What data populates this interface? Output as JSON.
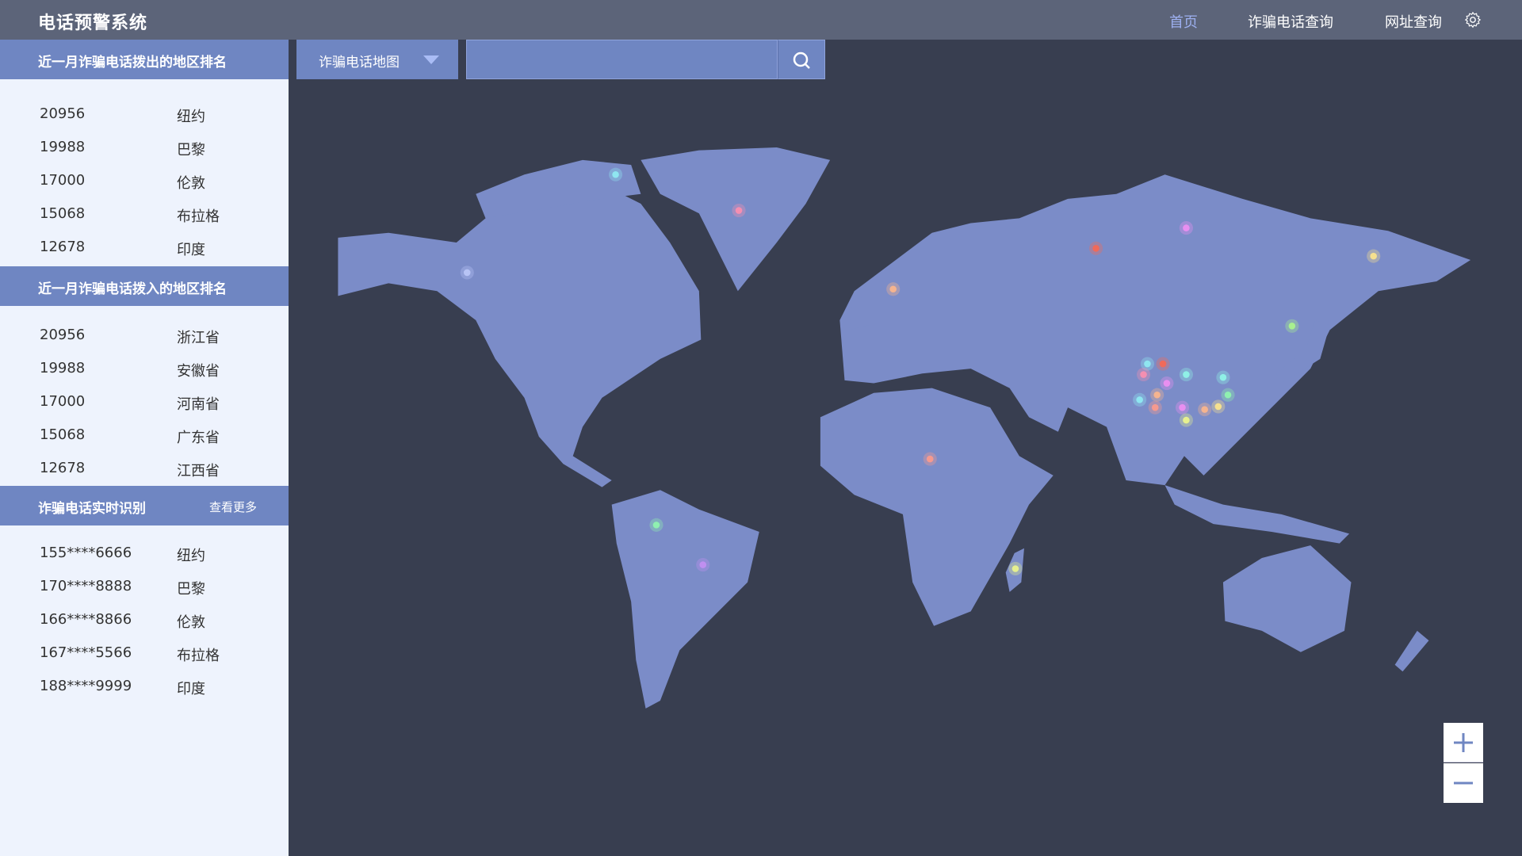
{
  "header": {
    "title": "电话预警系统",
    "nav": [
      {
        "label": "首页",
        "active": true
      },
      {
        "label": "诈骗电话查询"
      },
      {
        "label": "网址查询"
      }
    ],
    "settings_icon": "gear-icon"
  },
  "sidebar": {
    "outgoing": {
      "title": "近一月诈骗电话拨出的地区排名",
      "rows": [
        {
          "count": "20956",
          "region": "纽约"
        },
        {
          "count": "19988",
          "region": "巴黎"
        },
        {
          "count": "17000",
          "region": "伦敦"
        },
        {
          "count": "15068",
          "region": "布拉格"
        },
        {
          "count": "12678",
          "region": "印度"
        }
      ]
    },
    "incoming": {
      "title": "近一月诈骗电话拨入的地区排名",
      "rows": [
        {
          "count": "20956",
          "region": "浙江省"
        },
        {
          "count": "19988",
          "region": "安徽省"
        },
        {
          "count": "17000",
          "region": "河南省"
        },
        {
          "count": "15068",
          "region": "广东省"
        },
        {
          "count": "12678",
          "region": "江西省"
        }
      ]
    },
    "realtime": {
      "title": "诈骗电话实时识别",
      "more": "查看更多",
      "rows": [
        {
          "number": "155****6666",
          "region": "纽约"
        },
        {
          "number": "170****8888",
          "region": "巴黎"
        },
        {
          "number": "166****8866",
          "region": "伦敦"
        },
        {
          "number": "167****5566",
          "region": "布拉格"
        },
        {
          "number": "188****9999",
          "region": "印度"
        }
      ]
    }
  },
  "toolbar": {
    "dropdown_value": "诈骗电话地图",
    "search_value": "",
    "search_icon": "search-icon"
  },
  "map": {
    "land_color": "#7b8cc8",
    "background": "#383e50",
    "zoom_in": "+",
    "zoom_out": "−"
  }
}
